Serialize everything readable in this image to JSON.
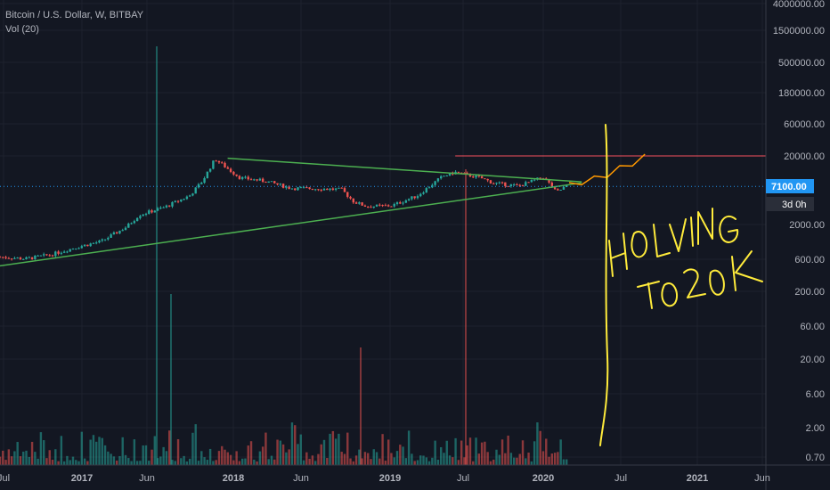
{
  "header": {
    "symbol_line": "Bitcoin / U.S. Dollar, W, BITBAY",
    "volume_line": "Vol (20)"
  },
  "price_axis": {
    "ticks": [
      "4000000.00",
      "1500000.00",
      "500000.00",
      "180000.00",
      "60000.00",
      "20000.00",
      "2000.00",
      "600.00",
      "200.00",
      "60.00",
      "20.00",
      "6.00",
      "2.00",
      "0.70"
    ],
    "current_price": "7100.00",
    "countdown": "3d 0h"
  },
  "time_axis": {
    "ticks": [
      "Jul",
      "2017",
      "Jun",
      "2018",
      "Jun",
      "2019",
      "Jul",
      "2020",
      "Jul",
      "2021",
      "Jun"
    ]
  },
  "chart_data": {
    "type": "candlestick",
    "scale": "log",
    "x_range": [
      "2016-07",
      "2021-06"
    ],
    "price_series": {
      "name": "",
      "points": [
        [
          "2016-07",
          650
        ],
        [
          "2016-09",
          610
        ],
        [
          "2016-11",
          700
        ],
        [
          "2017-01",
          900
        ],
        [
          "2017-03",
          1100
        ],
        [
          "2017-05",
          1800
        ],
        [
          "2017-06",
          2700
        ],
        [
          "2017-08",
          3500
        ],
        [
          "2017-10",
          5200
        ],
        [
          "2017-11",
          8500
        ],
        [
          "2017-12",
          18000
        ],
        [
          "2018-01",
          13000
        ],
        [
          "2018-02",
          9500
        ],
        [
          "2018-04",
          8500
        ],
        [
          "2018-06",
          6700
        ],
        [
          "2018-08",
          6600
        ],
        [
          "2018-10",
          6400
        ],
        [
          "2018-11",
          4200
        ],
        [
          "2018-12",
          3600
        ],
        [
          "2019-02",
          3700
        ],
        [
          "2019-04",
          5200
        ],
        [
          "2019-06",
          10000
        ],
        [
          "2019-07",
          11500
        ],
        [
          "2019-09",
          9500
        ],
        [
          "2019-10",
          8000
        ],
        [
          "2019-12",
          7200
        ],
        [
          "2020-02",
          9800
        ],
        [
          "2020-03",
          5800
        ],
        [
          "2020-04",
          7600
        ]
      ]
    },
    "projection": {
      "points": [
        [
          "2020-04",
          7600
        ],
        [
          "2020-05",
          9000
        ],
        [
          "2020-06",
          9500
        ],
        [
          "2020-07",
          11500
        ],
        [
          "2020-08",
          13500
        ],
        [
          "2020-09",
          17000
        ],
        [
          "2020-10",
          20000
        ]
      ]
    },
    "volume_series": {
      "name": "Vol (20)"
    },
    "trendlines": [
      {
        "from": [
          "2018-01",
          18500
        ],
        "to": [
          "2020-05",
          8300
        ],
        "color": "#4caf50"
      },
      {
        "from": [
          "2016-07",
          480
        ],
        "to": [
          "2020-05",
          8000
        ],
        "color": "#4caf50"
      }
    ],
    "horizontal_line": {
      "value": 20000,
      "color": "#f7525f"
    },
    "current_price_line": {
      "value": 7100,
      "color": "#2196f3"
    },
    "annotations": [
      "HOLVING",
      "TO 20K"
    ],
    "colors": {
      "up": "#26a69a",
      "down": "#ef5350",
      "trendline": "#4caf50",
      "projection": "#ff9800",
      "annotation": "#ffeb3b",
      "background": "#131722",
      "price_label": "#2196f3"
    }
  }
}
